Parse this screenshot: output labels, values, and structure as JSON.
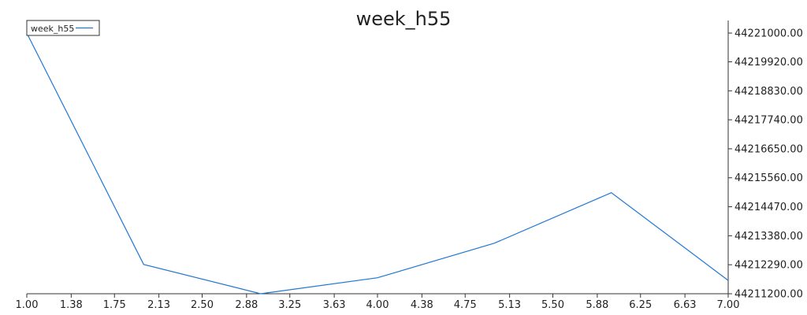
{
  "chart_data": {
    "type": "line",
    "title": "week_h55",
    "xlabel": "",
    "ylabel": "",
    "x": [
      1,
      2,
      3,
      4,
      5,
      6,
      7
    ],
    "series": [
      {
        "name": "week_h55",
        "color": "#1f77d4",
        "values": [
          44221000,
          44212300,
          44211200,
          44211800,
          44213100,
          44215000,
          44211700
        ]
      }
    ],
    "xlim": [
      1.0,
      7.0
    ],
    "ylim": [
      44211200,
      44221000
    ],
    "x_ticks": [
      "1.00",
      "1.38",
      "1.75",
      "2.13",
      "2.50",
      "2.88",
      "3.25",
      "3.63",
      "4.00",
      "4.38",
      "4.75",
      "5.13",
      "5.50",
      "5.88",
      "6.25",
      "6.63",
      "7.00"
    ],
    "y_ticks": [
      "44221000.00",
      "44219920.00",
      "44218830.00",
      "44217740.00",
      "44216650.00",
      "44215560.00",
      "44214470.00",
      "44213380.00",
      "44212290.00",
      "44211200.00"
    ],
    "y_axis_side": "right",
    "grid": false,
    "legend_position": "top-left"
  }
}
